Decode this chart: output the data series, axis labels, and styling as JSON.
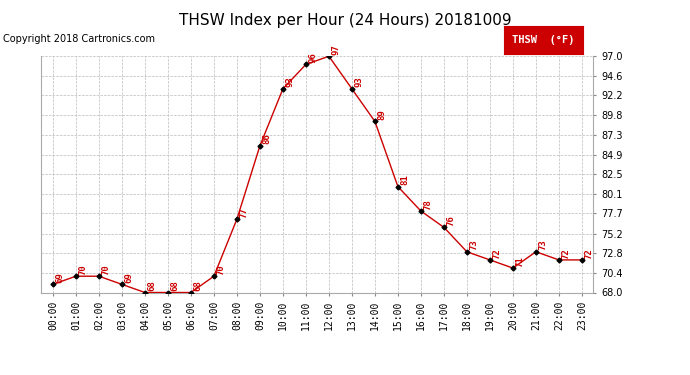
{
  "title": "THSW Index per Hour (24 Hours) 20181009",
  "copyright": "Copyright 2018 Cartronics.com",
  "legend_label": "THSW  (°F)",
  "hours": [
    "00:00",
    "01:00",
    "02:00",
    "03:00",
    "04:00",
    "05:00",
    "06:00",
    "07:00",
    "08:00",
    "09:00",
    "10:00",
    "11:00",
    "12:00",
    "13:00",
    "14:00",
    "15:00",
    "16:00",
    "17:00",
    "18:00",
    "19:00",
    "20:00",
    "21:00",
    "22:00",
    "23:00"
  ],
  "values": [
    69,
    70,
    70,
    69,
    68,
    68,
    68,
    70,
    77,
    86,
    93,
    96,
    97,
    93,
    89,
    81,
    78,
    76,
    73,
    72,
    71,
    73,
    72,
    72
  ],
  "ylim": [
    68.0,
    97.0
  ],
  "yticks": [
    68.0,
    70.4,
    72.8,
    75.2,
    77.7,
    80.1,
    82.5,
    84.9,
    87.3,
    89.8,
    92.2,
    94.6,
    97.0
  ],
  "ytick_labels": [
    "68.0",
    "70.4",
    "72.8",
    "75.2",
    "77.7",
    "80.1",
    "82.5",
    "84.9",
    "87.3",
    "89.8",
    "92.2",
    "94.6",
    "97.0"
  ],
  "line_color": "#cc0000",
  "marker_color": "#000000",
  "bg_color": "#ffffff",
  "grid_color": "#bbbbbb",
  "title_fontsize": 11,
  "copyright_fontsize": 7,
  "label_fontsize": 7,
  "tick_fontsize": 7,
  "annot_fontsize": 6.5
}
